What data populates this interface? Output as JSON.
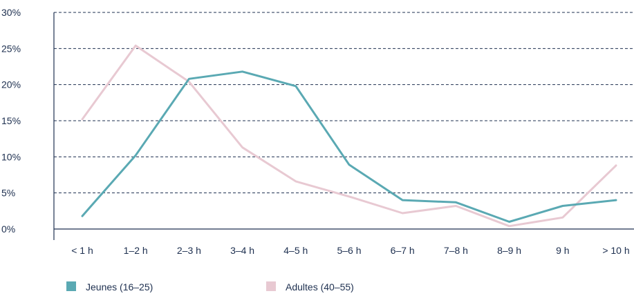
{
  "chart_data": {
    "type": "line",
    "categories": [
      "< 1 h",
      "1–2 h",
      "2–3 h",
      "3–4 h",
      "4–5 h",
      "5–6 h",
      "6–7 h",
      "7–8 h",
      "8–9 h",
      "9 h",
      "> 10 h"
    ],
    "yticks": [
      "0%",
      "5%",
      "10%",
      "15%",
      "20%",
      "25%",
      "30%"
    ],
    "ylim": [
      0,
      30
    ],
    "grid": true,
    "legend_position": "bottom-left",
    "series": [
      {
        "name": "Jeunes (16–25)",
        "color": "#5aa9b3",
        "values": [
          1.8,
          10.2,
          20.8,
          21.8,
          19.8,
          8.9,
          4.0,
          3.7,
          1.0,
          3.2,
          4.0
        ]
      },
      {
        "name": "Adultes (40–55)",
        "color": "#e8c9d2",
        "values": [
          15.2,
          25.4,
          20.4,
          11.3,
          6.6,
          4.5,
          2.2,
          3.2,
          0.4,
          1.6,
          8.8
        ]
      }
    ],
    "axis_color": "#1d2f4f",
    "grid_color": "#1d2f4f"
  }
}
